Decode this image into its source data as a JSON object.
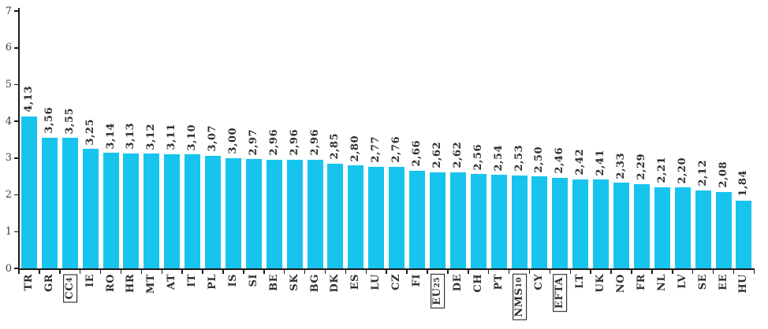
{
  "chart_data": {
    "type": "bar",
    "title": "",
    "xlabel": "",
    "ylabel": "",
    "ylim": [
      0,
      7
    ],
    "yticks": [
      0,
      1,
      2,
      3,
      4,
      5,
      6,
      7
    ],
    "grid": false,
    "legend": null,
    "bar_color": "#17c4ee",
    "categories": [
      "TR",
      "GR",
      "CC4",
      "IE",
      "RO",
      "HR",
      "MT",
      "AT",
      "IT",
      "PL",
      "IS",
      "SI",
      "BE",
      "SK",
      "BG",
      "DK",
      "ES",
      "LU",
      "CZ",
      "FI",
      "EU25",
      "DE",
      "CH",
      "PT",
      "NMS10",
      "CY",
      "EFTA",
      "LT",
      "UK",
      "NO",
      "FR",
      "NL",
      "LV",
      "SE",
      "EE",
      "HU"
    ],
    "values": [
      4.13,
      3.56,
      3.55,
      3.25,
      3.14,
      3.13,
      3.12,
      3.11,
      3.1,
      3.07,
      3.0,
      2.97,
      2.96,
      2.96,
      2.96,
      2.85,
      2.8,
      2.77,
      2.76,
      2.66,
      2.62,
      2.62,
      2.56,
      2.54,
      2.53,
      2.5,
      2.46,
      2.42,
      2.41,
      2.33,
      2.29,
      2.21,
      2.2,
      2.12,
      2.08,
      1.84
    ],
    "value_labels": [
      "4,13",
      "3,56",
      "3,55",
      "3,25",
      "3,14",
      "3,13",
      "3,12",
      "3,11",
      "3,10",
      "3,07",
      "3,00",
      "2,97",
      "2,96",
      "2,96",
      "2,96",
      "2,85",
      "2,80",
      "2,77",
      "2,76",
      "2,66",
      "2,62",
      "2,62",
      "2,56",
      "2,54",
      "2,53",
      "2,50",
      "2,46",
      "2,42",
      "2,41",
      "2,33",
      "2,29",
      "2,21",
      "2,20",
      "2,12",
      "2,08",
      "1,84"
    ],
    "boxed_categories": [
      "CC4",
      "EU25",
      "NMS10",
      "EFTA"
    ],
    "subscripts": {
      "CC4": [
        "CC",
        "4"
      ],
      "EU25": [
        "EU",
        "25"
      ],
      "NMS10": [
        "NMS",
        "10"
      ]
    }
  }
}
